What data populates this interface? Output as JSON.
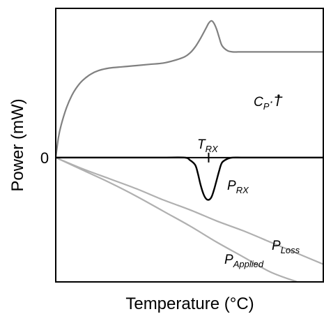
{
  "chart_data": {
    "type": "line",
    "title": "",
    "xlabel": "Temperature (°C)",
    "ylabel": "Power (mW)",
    "y_ticks": [
      {
        "value": 0,
        "label": "0"
      }
    ],
    "x_range": [
      0,
      100
    ],
    "y_range": [
      -100,
      120
    ],
    "grid": false,
    "legend": "none",
    "series": [
      {
        "key": "cp_tdot",
        "label_main": "C",
        "label_sub": "P",
        "label_tail": "·",
        "label_tdot": "T",
        "color": "#808080",
        "x": [
          0,
          1,
          2,
          4,
          6,
          8,
          10,
          13,
          16,
          20,
          25,
          30,
          35,
          40,
          44,
          48,
          50,
          52,
          54,
          56,
          57,
          58,
          59,
          60,
          61,
          62,
          64,
          66,
          68,
          70,
          80,
          90,
          100
        ],
        "y": [
          0,
          16,
          26,
          40,
          50,
          57,
          62,
          67,
          70,
          72,
          73,
          74,
          75,
          76,
          78,
          81,
          84,
          89,
          96,
          104,
          108,
          110,
          108,
          103,
          96,
          90,
          86,
          85,
          85,
          85,
          85,
          85,
          85
        ]
      },
      {
        "key": "p_rx",
        "label_main": "P",
        "label_sub": "RX",
        "color": "#000000",
        "x": [
          0,
          10,
          20,
          30,
          40,
          48,
          50,
          52,
          53,
          54,
          55,
          56,
          57,
          58,
          59,
          60,
          61,
          62,
          64,
          66,
          70,
          80,
          90,
          100
        ],
        "y": [
          0,
          0,
          0,
          0,
          0,
          0,
          -2,
          -6,
          -13,
          -22,
          -29,
          -33,
          -34,
          -32,
          -26,
          -18,
          -10,
          -4,
          -1,
          0,
          0,
          0,
          0,
          0
        ]
      },
      {
        "key": "p_loss",
        "label_main": "P",
        "label_sub": "Loss",
        "color": "#b0b0b0",
        "x": [
          0,
          10,
          20,
          30,
          40,
          50,
          60,
          70,
          80,
          90,
          100
        ],
        "y": [
          0,
          -9,
          -17,
          -25,
          -34,
          -42,
          -51,
          -59,
          -68,
          -77,
          -86
        ]
      },
      {
        "key": "p_applied",
        "label_main": "P",
        "label_sub": "Applied",
        "color": "#b0b0b0",
        "x": [
          0,
          10,
          20,
          30,
          40,
          50,
          60,
          70,
          80,
          90
        ],
        "y": [
          0,
          -10,
          -20,
          -31,
          -43,
          -55,
          -68,
          -80,
          -92,
          -100
        ]
      }
    ],
    "annotations": [
      {
        "key": "t_rx",
        "label_main": "T",
        "label_sub": "RX",
        "x": 57
      }
    ]
  }
}
